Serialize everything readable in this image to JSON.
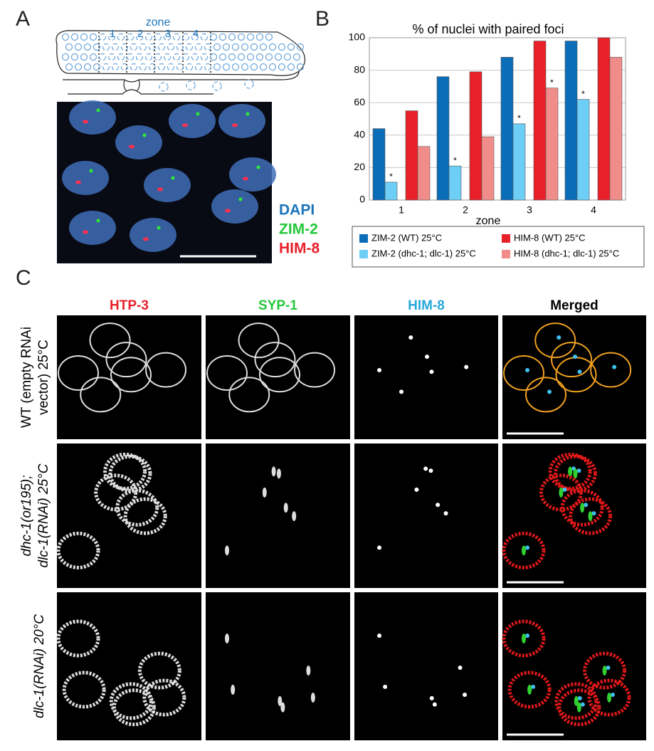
{
  "panel_a": {
    "label": "A",
    "zone_title": "zone",
    "zones": [
      "1",
      "2",
      "3",
      "4"
    ],
    "channels": [
      "DAPI",
      "ZIM-2",
      "HIM-8"
    ]
  },
  "panel_b": {
    "label": "B"
  },
  "chart_data": {
    "type": "bar",
    "title": "% of nuclei with paired foci",
    "x_label": "zone",
    "categories": [
      "1",
      "2",
      "3",
      "4"
    ],
    "series": [
      {
        "name": "ZIM-2 (WT) 25°C",
        "color": "#0a6db8",
        "values": [
          44,
          76,
          88,
          98
        ]
      },
      {
        "name": "ZIM-2 (dhc-1; dlc-1) 25°C",
        "color": "#6dcff6",
        "values": [
          11,
          21,
          47,
          62
        ],
        "significance": [
          "*",
          "*",
          "*",
          "*"
        ]
      },
      {
        "name": "HIM-8 (WT) 25°C",
        "color": "#e8202a",
        "values": [
          55,
          79,
          98,
          100
        ]
      },
      {
        "name": "HIM-8 (dhc-1; dlc-1) 25°C",
        "color": "#f08c8a",
        "values": [
          33,
          39,
          69,
          88
        ],
        "significance": [
          null,
          null,
          "*",
          null
        ]
      }
    ],
    "ylim": [
      0,
      100
    ],
    "yticks": [
      0,
      20,
      40,
      60,
      80,
      100
    ],
    "grid": true,
    "legend": "bottom"
  },
  "panel_c": {
    "label": "C",
    "columns": [
      "HTP-3",
      "SYP-1",
      "HIM-8",
      "Merged"
    ],
    "rows": [
      [
        "WT (empty RNAi",
        "vector) 25°C"
      ],
      [
        "dhc-1(or195);",
        "dlc-1(RNAi) 25°C"
      ],
      [
        "dlc-1(RNAi) 20°C"
      ]
    ]
  }
}
